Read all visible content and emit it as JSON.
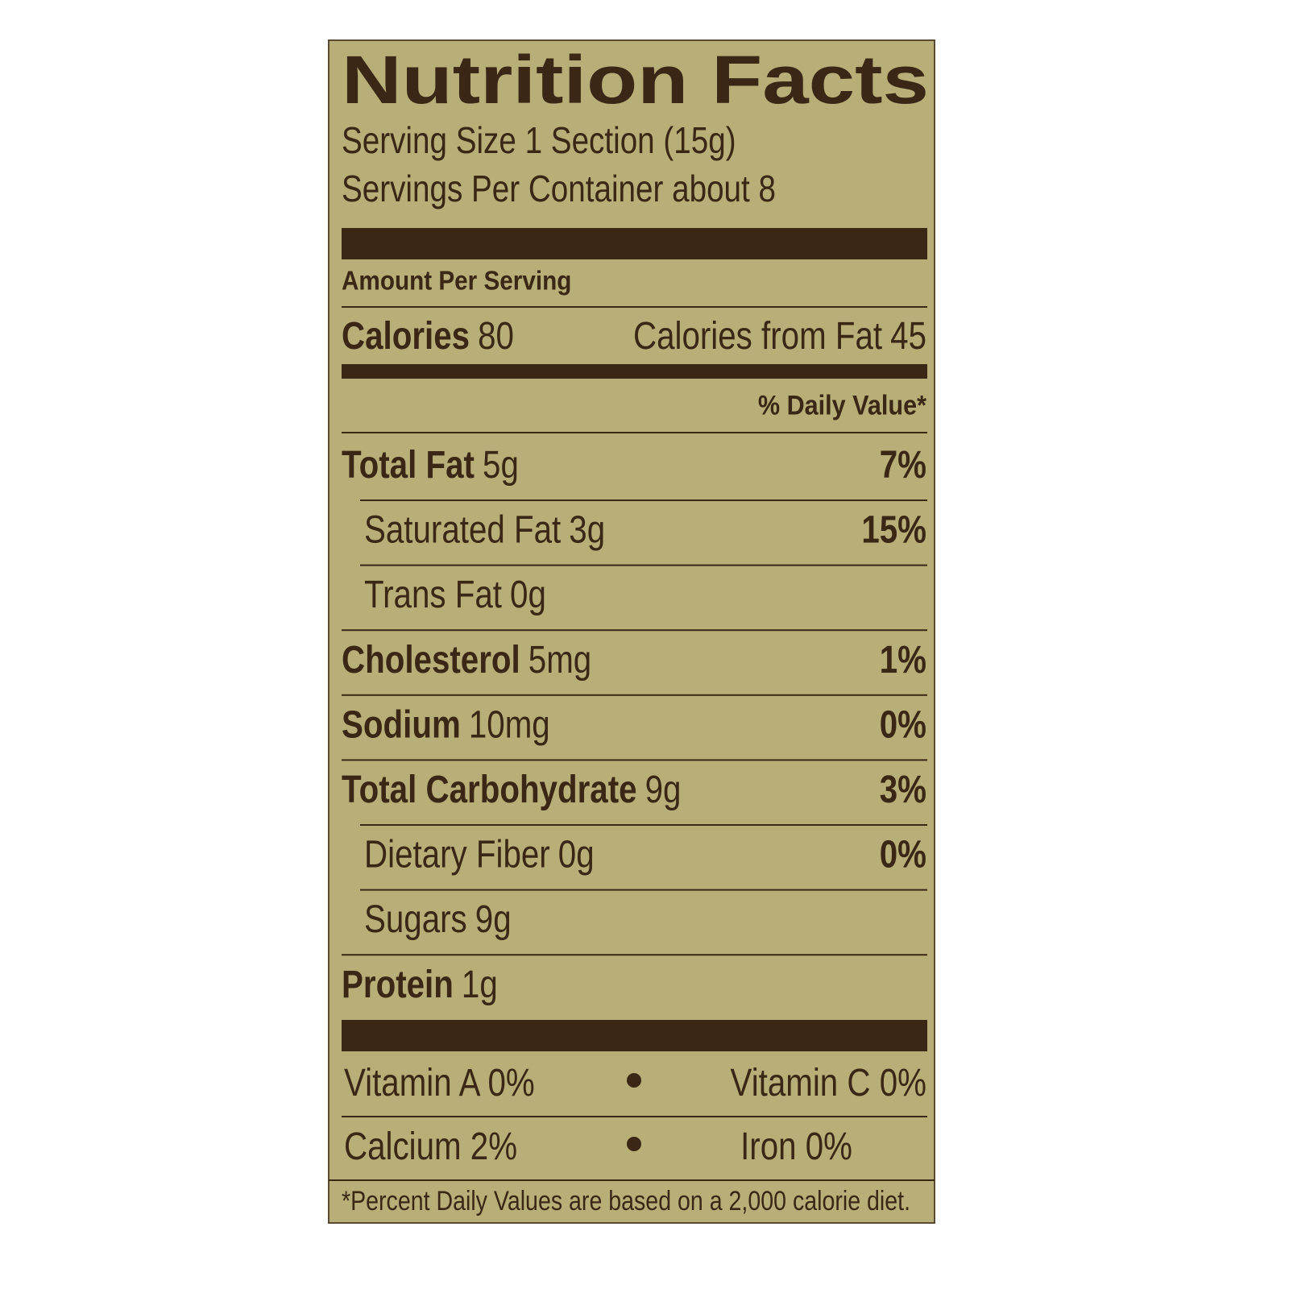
{
  "title": "Nutrition Facts",
  "serving_size": "Serving Size 1 Section (15g)",
  "servings_per_container": "Servings Per Container about 8",
  "amount_per_serving": "Amount Per Serving",
  "calories": {
    "label": "Calories",
    "value": "80"
  },
  "calories_from_fat": {
    "label": "Calories from Fat",
    "value": "45"
  },
  "daily_value_header": "% Daily Value*",
  "nutrients": [
    {
      "name": "Total Fat",
      "amount": "5g",
      "dv": "7%",
      "sub": [
        {
          "name": "Saturated Fat",
          "amount": "3g",
          "dv": "15%"
        },
        {
          "name": "Trans Fat",
          "amount": "0g"
        }
      ]
    },
    {
      "name": "Cholesterol",
      "amount": "5mg",
      "dv": "1%"
    },
    {
      "name": "Sodium",
      "amount": "10mg",
      "dv": "0%"
    },
    {
      "name": "Total Carbohydrate",
      "amount": "9g",
      "dv": "3%",
      "sub": [
        {
          "name": "Dietary Fiber",
          "amount": "0g",
          "dv": "0%"
        },
        {
          "name": "Sugars",
          "amount": "9g"
        }
      ]
    },
    {
      "name": "Protein",
      "amount": "1g"
    }
  ],
  "vitamins": [
    {
      "left": "Vitamin A 0%",
      "right": "Vitamin C 0%"
    },
    {
      "left": "Calcium 2%",
      "right": "Iron 0%"
    }
  ],
  "footnote": "*Percent Daily Values are based on a 2,000 calorie diet."
}
